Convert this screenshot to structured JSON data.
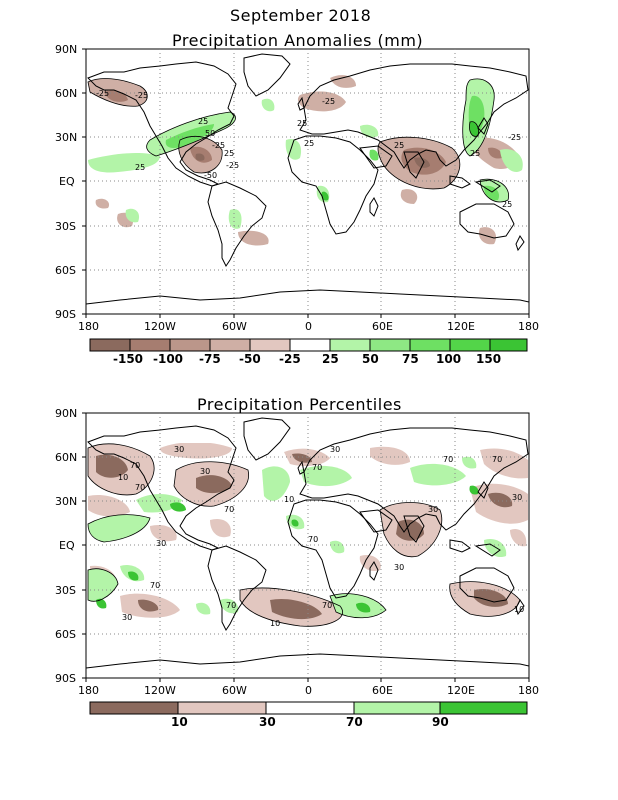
{
  "page_title": "September 2018",
  "map1": {
    "title": "Precipitation Anomalies (mm)",
    "lat_labels": [
      "90N",
      "60N",
      "30N",
      "EQ",
      "30S",
      "60S",
      "90S"
    ],
    "lon_labels": [
      "180",
      "120W",
      "60W",
      "0",
      "60E",
      "120E",
      "180"
    ],
    "contour_labels": [
      "-25",
      "-25",
      "25",
      "50",
      "-25",
      "25",
      "25",
      "-25",
      "-50",
      "25",
      "25",
      "-25",
      "25",
      "25",
      "-25",
      "25"
    ],
    "colorbar_labels": [
      "-150",
      "-100",
      "-75",
      "-50",
      "-25",
      "25",
      "50",
      "75",
      "100",
      "150"
    ],
    "colorbar_colors": [
      "#8b6a5e",
      "#a67d70",
      "#bb968a",
      "#cfafa5",
      "#e2c7c0",
      "#ffffff",
      "#b3f4a8",
      "#8ee884",
      "#6ee063",
      "#53d549",
      "#3bc434"
    ]
  },
  "map2": {
    "title": "Precipitation Percentiles",
    "lat_labels": [
      "90N",
      "60N",
      "30N",
      "EQ",
      "30S",
      "60S",
      "90S"
    ],
    "lon_labels": [
      "180",
      "120W",
      "60W",
      "0",
      "60E",
      "120E",
      "180"
    ],
    "contour_labels": [
      "10",
      "70",
      "70",
      "30",
      "30",
      "70",
      "10",
      "30",
      "70",
      "70",
      "30",
      "70",
      "30",
      "30",
      "10",
      "70",
      "70",
      "30",
      "10",
      "70",
      "30",
      "70"
    ],
    "colorbar_labels": [
      "10",
      "30",
      "70",
      "90"
    ],
    "colorbar_colors": [
      "#8b6a5e",
      "#e2c7c0",
      "#ffffff",
      "#b3f4a8",
      "#3bc434"
    ]
  }
}
